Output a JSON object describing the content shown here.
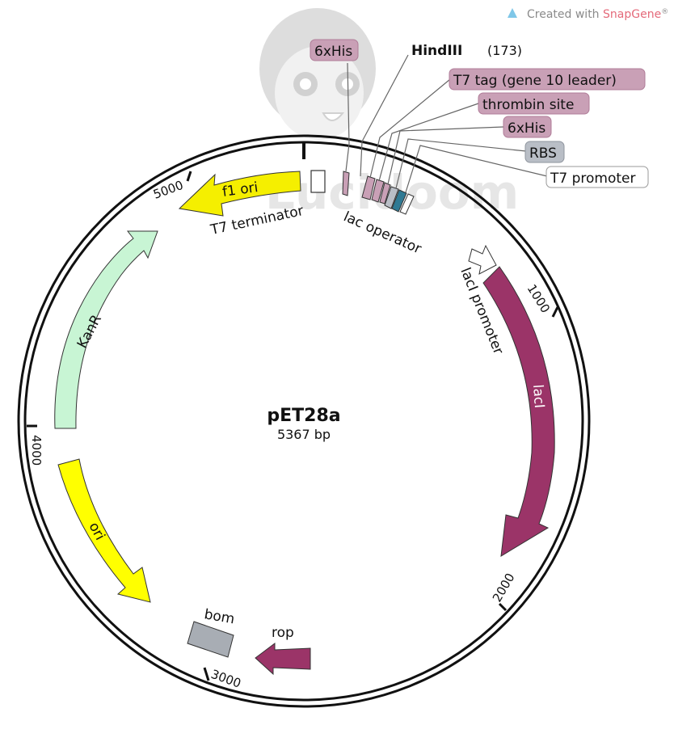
{
  "brand": {
    "prefix": "Created with ",
    "name": "SnapGene",
    "mark": "®"
  },
  "plasmid": {
    "name": "pET28a",
    "length": "5367 bp"
  },
  "ticks": [
    "1000",
    "2000",
    "3000",
    "4000",
    "5000"
  ],
  "site": {
    "enzyme": "HindIII",
    "position": "(173)"
  },
  "callouts": [
    "6xHis",
    "T7 tag (gene 10 leader)",
    "thrombin site",
    "6xHis",
    "RBS",
    "T7 promoter"
  ],
  "features": {
    "f1_ori": "f1 ori",
    "t7_terminator": "T7 terminator",
    "lac_operator": "lac operator",
    "laci_promoter": "lacI promoter",
    "laci": "lacI",
    "kanr": "KanR",
    "ori": "ori",
    "bom": "bom",
    "rop": "rop"
  },
  "colors": {
    "tag": "#c9a0b6",
    "tag_text": "#222",
    "rbs": "#b9bec6",
    "laci": "#9b3468",
    "f1_ori": "#f5ef00",
    "kanr": "#c8f5d4",
    "ori": "#ffff00",
    "bom": "#a8adb4",
    "rop": "#9b3468",
    "lac_operator": "#2f7a94",
    "watermark": "#d6d6d6"
  }
}
